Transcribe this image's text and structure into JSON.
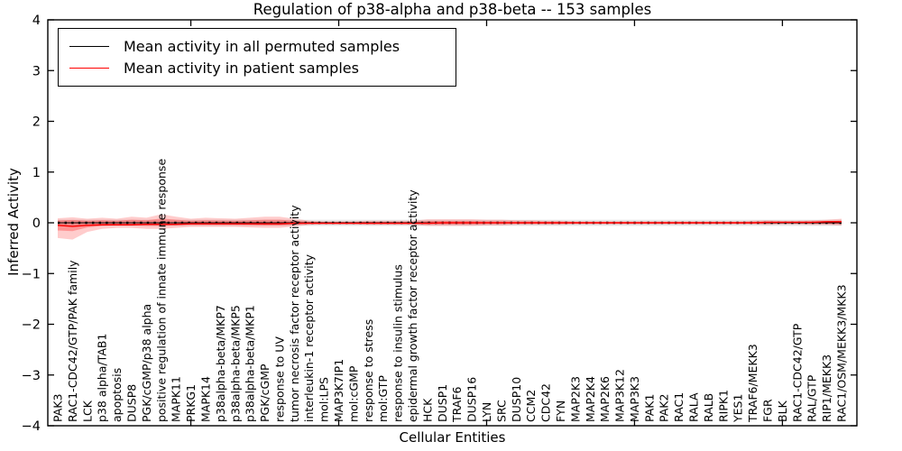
{
  "title": "Regulation of p38-alpha and p38-beta -- 153 samples",
  "x_axis_label": "Cellular Entities",
  "y_axis_label": "Inferred Activity",
  "legend": {
    "position": "upper left",
    "items": [
      {
        "label": "Mean activity in all permuted samples",
        "color": "#000000"
      },
      {
        "label": "Mean activity in patient samples",
        "color": "#ff0000"
      }
    ]
  },
  "chart_data": {
    "type": "line",
    "title": "Regulation of p38-alpha and p38-beta -- 153 samples",
    "xlabel": "Cellular Entities",
    "ylabel": "Inferred Activity",
    "ylim": [
      -4,
      4
    ],
    "y_ticks": [
      4,
      3,
      2,
      1,
      0,
      -1,
      -2,
      -3,
      -4
    ],
    "y_tick_labels": [
      "4",
      "3",
      "2",
      "1",
      "0",
      "−1",
      "−2",
      "−3",
      "−4"
    ],
    "grid": false,
    "x_major_tick_indices": [
      9,
      19,
      29,
      39,
      49
    ],
    "categories": [
      "PAK3",
      "RAC1-CDC42/GTP/PAK family",
      "LCK",
      "p38 alpha/TAB1",
      "apoptosis",
      "DUSP8",
      "PGK/cGMP/p38 alpha",
      "positive regulation of innate immune response",
      "MAPK11",
      "PRKG1",
      "MAPK14",
      "p38alpha-beta/MKP7",
      "p38alpha-beta/MKP5",
      "p38alpha-beta/MKP1",
      "PGK/cGMP",
      "response to UV",
      "tumor necrosis factor receptor activity",
      "interleukin-1 receptor activity",
      "mol:LPS",
      "MAP3K7IP1",
      "mol:cGMP",
      "response to stress",
      "mol:GTP",
      "response to insulin stimulus",
      "epidermal growth factor receptor activity",
      "HCK",
      "DUSP1",
      "TRAF6",
      "DUSP16",
      "LYN",
      "SRC",
      "DUSP10",
      "CCM2",
      "CDC42",
      "FYN",
      "MAP2K3",
      "MAP2K4",
      "MAP2K6",
      "MAP3K12",
      "MAP3K3",
      "PAK1",
      "PAK2",
      "RAC1",
      "RALA",
      "RALB",
      "RIPK1",
      "YES1",
      "TRAF6/MEKK3",
      "FGR",
      "BLK",
      "RAC1-CDC42/GTP",
      "RAL/GTP",
      "RIP1/MEKK3",
      "RAC1/OSM/MEKK3/MKK3"
    ],
    "series": [
      {
        "name": "Mean activity in all permuted samples",
        "color": "#000000",
        "line_style": "solid-with-dots",
        "band_halfwidth": 0.06,
        "band_color": "#aaaaaa",
        "values": [
          0,
          0,
          0,
          0,
          0,
          0,
          0,
          0,
          0,
          0,
          0,
          0,
          0,
          0,
          0,
          0,
          0,
          0,
          0,
          0,
          0,
          0,
          0,
          0,
          0,
          0,
          0,
          0,
          0,
          0,
          0,
          0,
          0,
          0,
          0,
          0,
          0,
          0,
          0,
          0,
          0,
          0,
          0,
          0,
          0,
          0,
          0,
          0,
          0,
          0,
          0,
          0,
          0,
          0
        ]
      },
      {
        "name": "Mean activity in patient samples",
        "color": "#ff0000",
        "line_style": "solid",
        "band_color": "#ff0000",
        "values": [
          -0.05,
          -0.07,
          -0.05,
          -0.04,
          -0.04,
          -0.04,
          -0.03,
          -0.03,
          -0.03,
          -0.02,
          -0.02,
          -0.02,
          -0.02,
          -0.02,
          -0.02,
          -0.02,
          -0.01,
          -0.01,
          -0.01,
          -0.01,
          -0.01,
          -0.01,
          -0.01,
          -0.01,
          -0.01,
          -0.01,
          0,
          0,
          0,
          0,
          0,
          0,
          0,
          0,
          0,
          0,
          0,
          0,
          0,
          0,
          0,
          0,
          0,
          0,
          0,
          0,
          0,
          0,
          0.01,
          0.01,
          0.01,
          0.01,
          0.02,
          0.02
        ],
        "band_upper": [
          0.09,
          0.11,
          0.08,
          0.1,
          0.08,
          0.12,
          0.1,
          0.17,
          0.12,
          0.08,
          0.1,
          0.09,
          0.08,
          0.1,
          0.12,
          0.12,
          0.08,
          0.04,
          0.03,
          0.03,
          0.03,
          0.04,
          0.04,
          0.04,
          0.04,
          0.07,
          0.07,
          0.07,
          0.07,
          0.06,
          0.06,
          0.05,
          0.05,
          0.04,
          0.04,
          0.03,
          0.03,
          0.03,
          0.03,
          0.03,
          0.03,
          0.03,
          0.03,
          0.03,
          0.03,
          0.03,
          0.03,
          0.04,
          0.05,
          0.04,
          0.04,
          0.05,
          0.06,
          0.08
        ],
        "band_lower": [
          -0.3,
          -0.33,
          -0.18,
          -0.12,
          -0.1,
          -0.1,
          -0.12,
          -0.12,
          -0.1,
          -0.08,
          -0.08,
          -0.08,
          -0.08,
          -0.09,
          -0.1,
          -0.1,
          -0.07,
          -0.04,
          -0.03,
          -0.03,
          -0.03,
          -0.04,
          -0.04,
          -0.04,
          -0.04,
          -0.06,
          -0.06,
          -0.06,
          -0.06,
          -0.05,
          -0.05,
          -0.04,
          -0.04,
          -0.04,
          -0.04,
          -0.03,
          -0.03,
          -0.03,
          -0.03,
          -0.03,
          -0.03,
          -0.03,
          -0.03,
          -0.03,
          -0.03,
          -0.03,
          -0.03,
          -0.03,
          -0.04,
          -0.03,
          -0.03,
          -0.04,
          -0.04,
          -0.05
        ]
      }
    ]
  }
}
